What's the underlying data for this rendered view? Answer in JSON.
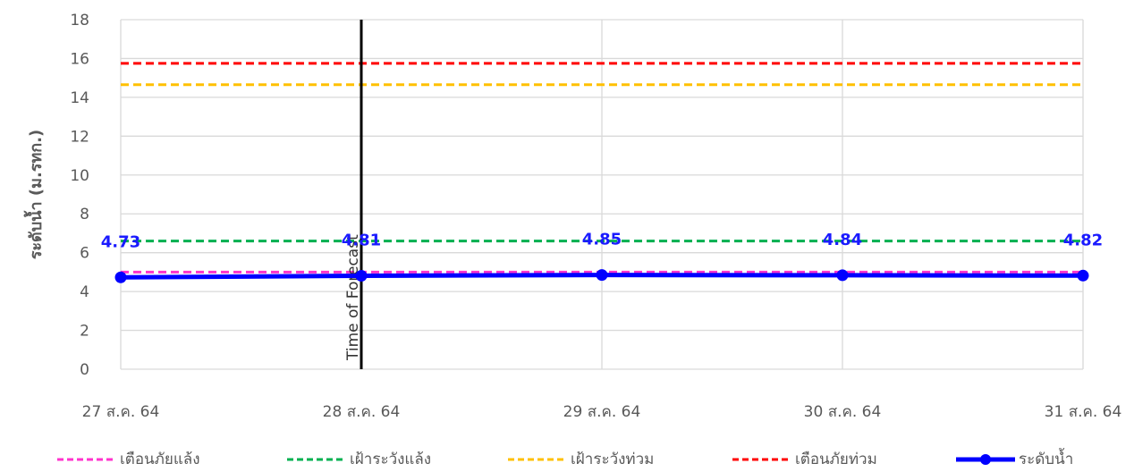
{
  "chart_data": {
    "type": "line",
    "ylabel": "ระดับน้ำ (ม.รทก.)",
    "ylim": [
      0,
      18
    ],
    "yticks": [
      0,
      2,
      4,
      6,
      8,
      10,
      12,
      14,
      16,
      18
    ],
    "categories": [
      "27 ส.ค. 64",
      "28 ส.ค. 64",
      "29 ส.ค. 64",
      "30 ส.ค. 64",
      "31 ส.ค. 64"
    ],
    "grid": true,
    "legend_position": "bottom",
    "thresholds": [
      {
        "name": "เตือนภัยแล้ง",
        "value": 5.0,
        "color": "#ff33cc",
        "style": "dashed"
      },
      {
        "name": "เฝ้าระวังแล้ง",
        "value": 6.6,
        "color": "#00b050",
        "style": "dashed"
      },
      {
        "name": "เฝ้าระวังท่วม",
        "value": 14.65,
        "color": "#ffc000",
        "style": "dashed"
      },
      {
        "name": "เตือนภัยท่วม",
        "value": 15.75,
        "color": "#ff0000",
        "style": "dashed"
      }
    ],
    "series": [
      {
        "name": "ระดับน้ำ",
        "values": [
          4.73,
          4.81,
          4.85,
          4.84,
          4.82
        ],
        "color": "#0000ff",
        "labels": [
          "4.73",
          "4.81",
          "4.85",
          "4.84",
          "4.82"
        ]
      }
    ],
    "annotation": {
      "text": "Time of Forecast",
      "category": "28 ส.ค. 64"
    }
  }
}
